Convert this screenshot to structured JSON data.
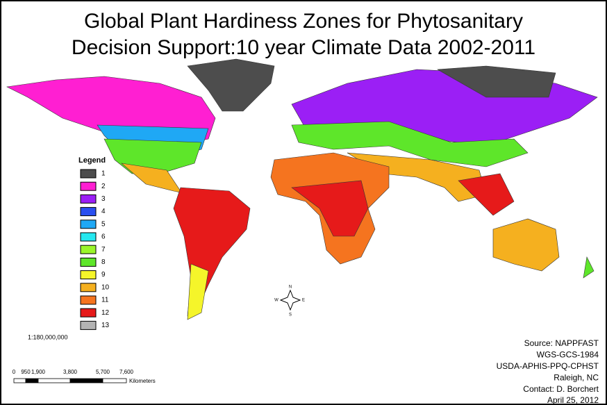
{
  "header": {
    "title_lines": [
      "Global Plant Hardiness Zones for Phytosanitary",
      "Decision Support:10 year Climate Data 2002-2011"
    ]
  },
  "legend": {
    "title": "Legend",
    "items": [
      {
        "label": "1",
        "color": "#4d4d4d"
      },
      {
        "label": "2",
        "color": "#ff1fd2"
      },
      {
        "label": "3",
        "color": "#9b1ff5"
      },
      {
        "label": "4",
        "color": "#2a4ff0"
      },
      {
        "label": "5",
        "color": "#1fa8f5"
      },
      {
        "label": "6",
        "color": "#25e8f0"
      },
      {
        "label": "7",
        "color": "#9af52a"
      },
      {
        "label": "8",
        "color": "#5ee62a"
      },
      {
        "label": "9",
        "color": "#f5f52a"
      },
      {
        "label": "10",
        "color": "#f5b01f"
      },
      {
        "label": "11",
        "color": "#f5741f"
      },
      {
        "label": "12",
        "color": "#e61a1a"
      },
      {
        "label": "13",
        "color": "#b3b3b3"
      }
    ]
  },
  "scale": {
    "ratio": "1:180,000,000",
    "bar_labels": [
      "0",
      "950",
      "1,900",
      "3,800",
      "5,700",
      "7,600"
    ],
    "unit": "Kilometers"
  },
  "compass": {
    "north": "N",
    "east": "E",
    "south": "S",
    "west": "W"
  },
  "source": {
    "lines": [
      "Source: NAPPFAST",
      "WGS-GCS-1984",
      "USDA-APHIS-PPQ-CPHST",
      "Raleigh, NC",
      "Contact: D. Borchert",
      "April 25, 2012"
    ]
  }
}
